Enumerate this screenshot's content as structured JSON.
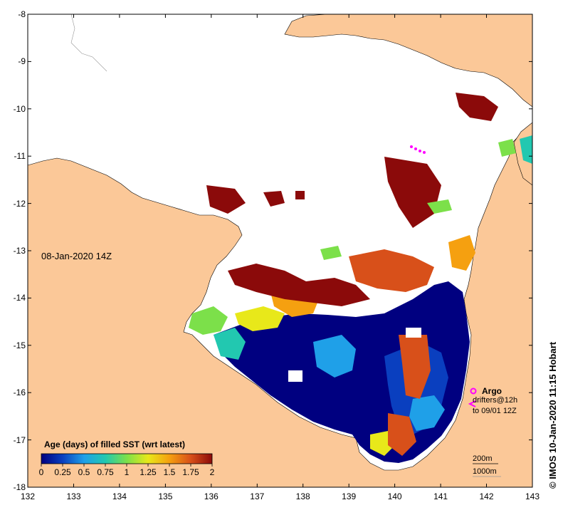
{
  "title": "08-Jan-2020 14Z",
  "credit": "© IMOS 10-Jan-2020 11:15 Hobart",
  "axes": {
    "y_ticks": [
      "-8",
      "-9",
      "-10",
      "-11",
      "-12",
      "-13",
      "-14",
      "-15",
      "-16",
      "-17",
      "-18"
    ],
    "x_ticks": [
      "132",
      "133",
      "134",
      "135",
      "136",
      "137",
      "138",
      "139",
      "140",
      "141",
      "142",
      "143"
    ],
    "lon_range": [
      132,
      143
    ],
    "lat_range": [
      -18,
      -8
    ]
  },
  "legend": {
    "title": "Age (days) of filled SST (wrt latest)",
    "ticks": [
      "0",
      "0.25",
      "0.5",
      "0.75",
      "1",
      "1.25",
      "1.5",
      "1.75",
      "2"
    ],
    "colors": [
      "#000080",
      "#0a3fbf",
      "#1fa0e8",
      "#22c8b0",
      "#7ce04a",
      "#e8e81a",
      "#f5a010",
      "#d8501a",
      "#8b0a0a"
    ]
  },
  "annotations": {
    "argo": "Argo",
    "drifters": "drifters@12h",
    "drifter_time": "to 09/01 12Z",
    "scale_200": "200m",
    "scale_1000": "1000m"
  },
  "colors": {
    "land": "#fbc898",
    "no_data": "#ffffff",
    "argo_marker": "#ff00ff"
  }
}
